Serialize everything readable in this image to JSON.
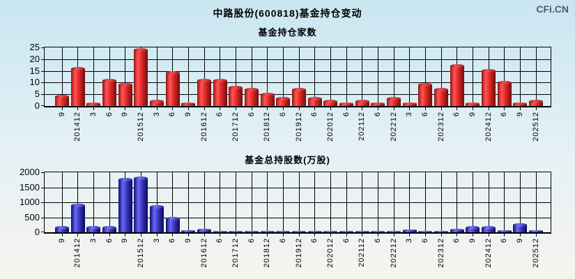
{
  "header": {
    "title": "中路股份(600818)基金持仓变动",
    "logo": "CFi.CN"
  },
  "colors": {
    "background_top": "#c9e6f1",
    "background_bottom": "#f6f4ef",
    "grid": "#000000",
    "fund_count_bar": "#e03030",
    "fund_shares_bar": "#3a3ac0"
  },
  "chart_data": [
    {
      "type": "bar",
      "title": "基金持仓家数",
      "bar_color": "red",
      "bar_color_hex": "#e03030",
      "ylim": [
        0,
        25
      ],
      "yticks": [
        0,
        5,
        10,
        15,
        20,
        25
      ],
      "grid": true,
      "legend": "none",
      "categories": [
        "9",
        "201412",
        "3",
        "6",
        "9",
        "201512",
        "3",
        "6",
        "9",
        "201612",
        "6",
        "201712",
        "6",
        "201812",
        "6",
        "201912",
        "6",
        "202012",
        "6",
        "202112",
        "6",
        "202212",
        "3",
        "6",
        "202312",
        "6",
        "9",
        "202412",
        "6",
        "9",
        "202512"
      ],
      "values": [
        4,
        16,
        1,
        11,
        9,
        24,
        2,
        14,
        1,
        11,
        11,
        8,
        7,
        5,
        3,
        7,
        3,
        2,
        1,
        2,
        1,
        3,
        1,
        9,
        7,
        17,
        1,
        15,
        10,
        1,
        2
      ]
    },
    {
      "type": "bar",
      "title": "基金总持股数(万股)",
      "bar_color": "blue",
      "bar_color_hex": "#3a3ac0",
      "ylim": [
        0,
        2000
      ],
      "yticks": [
        0,
        500,
        1000,
        1500,
        2000
      ],
      "grid": true,
      "legend": "none",
      "categories": [
        "9",
        "201412",
        "3",
        "6",
        "9",
        "201512",
        "3",
        "6",
        "9",
        "201612",
        "6",
        "201712",
        "6",
        "201812",
        "6",
        "201912",
        "6",
        "202012",
        "6",
        "202112",
        "6",
        "202212",
        "3",
        "6",
        "202312",
        "6",
        "9",
        "202412",
        "6",
        "9",
        "202512"
      ],
      "values": [
        150,
        900,
        150,
        150,
        1750,
        1800,
        850,
        450,
        50,
        80,
        20,
        20,
        15,
        15,
        15,
        20,
        15,
        15,
        10,
        15,
        10,
        30,
        60,
        30,
        30,
        90,
        150,
        150,
        40,
        250,
        40
      ]
    }
  ]
}
